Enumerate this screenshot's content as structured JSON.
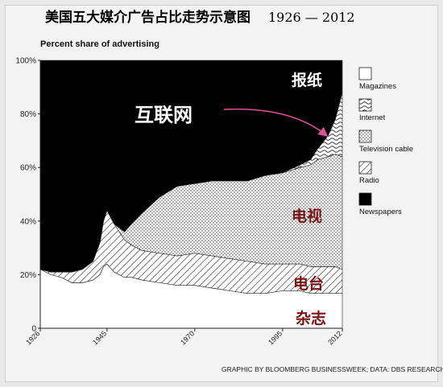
{
  "title": {
    "main": "美国五大媒介广告占比走势示意图",
    "years": "1926 — 2012"
  },
  "credit": "GRAPHIC BY BLOOMBERG BUSINESSWEEK; DATA: DBS RESEARCH",
  "annotations": {
    "newspapers": "报纸",
    "internet": "互联网",
    "television": "电视",
    "radio": "电台",
    "magazines": "杂志"
  },
  "colors": {
    "newspapers": "#000000",
    "magazines": "#ffffff",
    "arrow": "#e0509a"
  },
  "chart_data": {
    "type": "area",
    "stacked": true,
    "unit": "percent",
    "subtitle": "Percent share of advertising",
    "x_ticks": [
      "1926",
      "1945",
      "1970",
      "1995",
      "2012"
    ],
    "y_ticks": [
      "0",
      "20%",
      "40%",
      "60%",
      "80%",
      "100%"
    ],
    "ylim": [
      0,
      100
    ],
    "xlim": [
      1926,
      2012
    ],
    "x": [
      1926,
      1929,
      1932,
      1935,
      1938,
      1941,
      1943,
      1944,
      1945,
      1947,
      1950,
      1952,
      1955,
      1960,
      1965,
      1970,
      1975,
      1980,
      1985,
      1990,
      1995,
      2000,
      2003,
      2005,
      2008,
      2010,
      2012
    ],
    "series": [
      {
        "name": "Magazines",
        "pattern": "white",
        "values": [
          22,
          20,
          19,
          17,
          17,
          18,
          20,
          23,
          24,
          21,
          19,
          19,
          18,
          17,
          16,
          16,
          15,
          14,
          13,
          13,
          14,
          14,
          13,
          13,
          13,
          13,
          13
        ]
      },
      {
        "name": "Radio",
        "pattern": "diagonal-hatch",
        "values": [
          0,
          1,
          2,
          4,
          5,
          7,
          12,
          17,
          20,
          18,
          14,
          12,
          11,
          11,
          11,
          12,
          12,
          12,
          12,
          11,
          10,
          10,
          10,
          10,
          10,
          10,
          9
        ]
      },
      {
        "name": "Television cable",
        "pattern": "stipple",
        "values": [
          0,
          0,
          0,
          0,
          0,
          0,
          0,
          0,
          0,
          0,
          3,
          8,
          14,
          21,
          26,
          26,
          28,
          29,
          30,
          33,
          34,
          36,
          38,
          40,
          41,
          42,
          42
        ]
      },
      {
        "name": "Internet",
        "pattern": "wavy",
        "values": [
          0,
          0,
          0,
          0,
          0,
          0,
          0,
          0,
          0,
          0,
          0,
          0,
          0,
          0,
          0,
          0,
          0,
          0,
          0,
          0,
          0,
          1,
          2,
          4,
          8,
          13,
          24
        ]
      },
      {
        "name": "Newspapers",
        "pattern": "black",
        "values": [
          78,
          79,
          79,
          79,
          78,
          75,
          68,
          60,
          56,
          61,
          64,
          61,
          57,
          51,
          47,
          46,
          45,
          45,
          45,
          43,
          42,
          39,
          37,
          33,
          28,
          22,
          12
        ]
      }
    ]
  }
}
